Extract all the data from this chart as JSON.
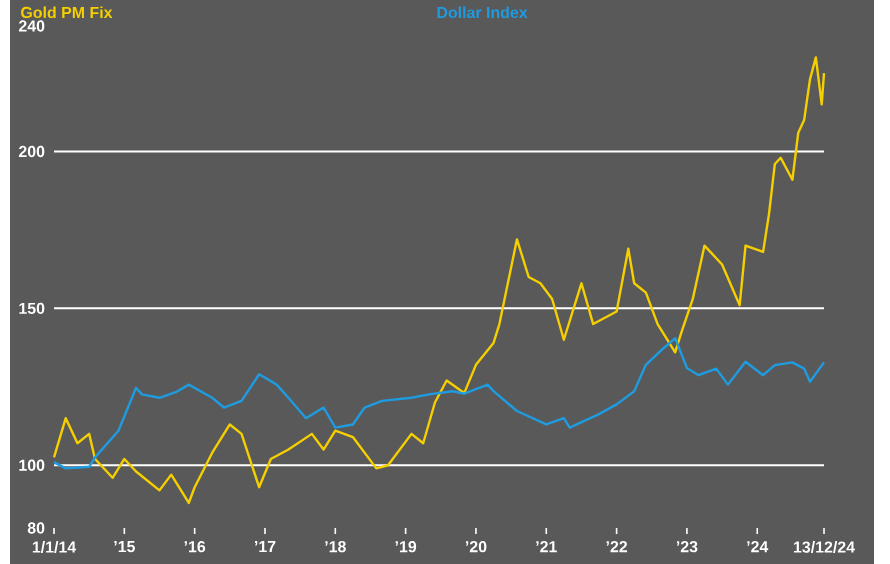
{
  "chart_data": {
    "type": "line",
    "x": [
      "2014-01",
      "2014-03",
      "2014-05",
      "2014-07",
      "2014-08",
      "2014-11",
      "2015-01",
      "2015-03",
      "2015-07",
      "2015-09",
      "2015-12",
      "2016-01",
      "2016-04",
      "2016-07",
      "2016-09",
      "2016-12",
      "2017-02",
      "2017-05",
      "2017-09",
      "2017-11",
      "2018-01",
      "2018-04",
      "2018-06",
      "2018-08",
      "2018-10",
      "2019-02",
      "2019-04",
      "2019-06",
      "2019-08",
      "2019-11",
      "2020-01",
      "2020-04",
      "2020-05",
      "2020-08",
      "2020-10",
      "2020-12",
      "2021-02",
      "2021-04",
      "2021-07",
      "2021-09",
      "2022-01",
      "2022-03",
      "2022-04",
      "2022-06",
      "2022-08",
      "2022-11",
      "2022-12",
      "2023-02",
      "2023-04",
      "2023-07",
      "2023-10",
      "2023-11",
      "2024-02",
      "2024-03",
      "2024-04",
      "2024-05",
      "2024-07",
      "2024-08",
      "2024-09",
      "2024-10",
      "2024-11",
      "2024-12-01",
      "2024-12-13"
    ],
    "series": [
      {
        "name": "Gold PM Fix",
        "color": "#f5cf00",
        "values": [
          102.5,
          115,
          107,
          110,
          102,
          96,
          102,
          98,
          92,
          97,
          88,
          93,
          104,
          113,
          110,
          93,
          102,
          105,
          110,
          105,
          111,
          109,
          104,
          99,
          100,
          110,
          107,
          120,
          127,
          123,
          132,
          139,
          145,
          172,
          160,
          158,
          153,
          140,
          158,
          145,
          149,
          169,
          158,
          155,
          145,
          136,
          142,
          153,
          170,
          164,
          151,
          170,
          168,
          180,
          196,
          198,
          191,
          206,
          210,
          223,
          230,
          215,
          225
        ]
      },
      {
        "name": "Dollar Index",
        "color": "#1f9be0",
        "x": [
          "2014-01",
          "2014-03",
          "2014-07",
          "2014-08",
          "2014-12",
          "2015-03",
          "2015-04",
          "2015-07",
          "2015-10",
          "2015-12",
          "2016-04",
          "2016-06",
          "2016-09",
          "2016-12",
          "2017-03",
          "2017-05",
          "2017-08",
          "2017-11",
          "2018-01",
          "2018-04",
          "2018-06",
          "2018-09",
          "2019-02",
          "2019-05",
          "2019-09",
          "2019-11",
          "2020-03",
          "2020-04",
          "2020-08",
          "2021-01",
          "2021-04",
          "2021-05",
          "2021-10",
          "2022-01",
          "2022-04",
          "2022-06",
          "2022-09",
          "2022-11",
          "2023-01",
          "2023-03",
          "2023-06",
          "2023-08",
          "2023-11",
          "2024-02",
          "2024-04",
          "2024-07",
          "2024-09",
          "2024-10",
          "2024-12-13"
        ],
        "values": [
          101,
          99,
          99.5,
          102.5,
          111,
          124.7,
          122.6,
          121.5,
          123.5,
          125.7,
          121.5,
          118.4,
          120.5,
          129,
          125.7,
          121.5,
          115,
          118.4,
          112,
          113,
          118.4,
          120.5,
          121.5,
          122.6,
          123.6,
          122.8,
          125.7,
          123.6,
          117.3,
          113,
          115,
          112,
          116.3,
          119.4,
          123.6,
          132,
          137.3,
          140.5,
          131,
          128.7,
          130.8,
          125.7,
          133,
          128.7,
          131.9,
          132.8,
          130.8,
          126.6,
          132.8
        ]
      }
    ],
    "xlim": [
      "2014-01-01",
      "2024-12-13"
    ],
    "xticks": [
      {
        "value": "2014-01-01",
        "label": "1/1/14"
      },
      {
        "value": "2015-01-01",
        "label": "’15"
      },
      {
        "value": "2016-01-01",
        "label": "’16"
      },
      {
        "value": "2017-01-01",
        "label": "’17"
      },
      {
        "value": "2018-01-01",
        "label": "’18"
      },
      {
        "value": "2019-01-01",
        "label": "’19"
      },
      {
        "value": "2020-01-01",
        "label": "’20"
      },
      {
        "value": "2021-01-01",
        "label": "’21"
      },
      {
        "value": "2022-01-01",
        "label": "’22"
      },
      {
        "value": "2023-01-01",
        "label": "’23"
      },
      {
        "value": "2024-01-01",
        "label": "’24"
      },
      {
        "value": "2024-12-13",
        "label": "13/12/24"
      }
    ],
    "ylim": [
      80,
      240
    ],
    "yticks": [
      80,
      100,
      150,
      200,
      240
    ],
    "grid": "y",
    "line_style": "solid",
    "marker": "none"
  }
}
